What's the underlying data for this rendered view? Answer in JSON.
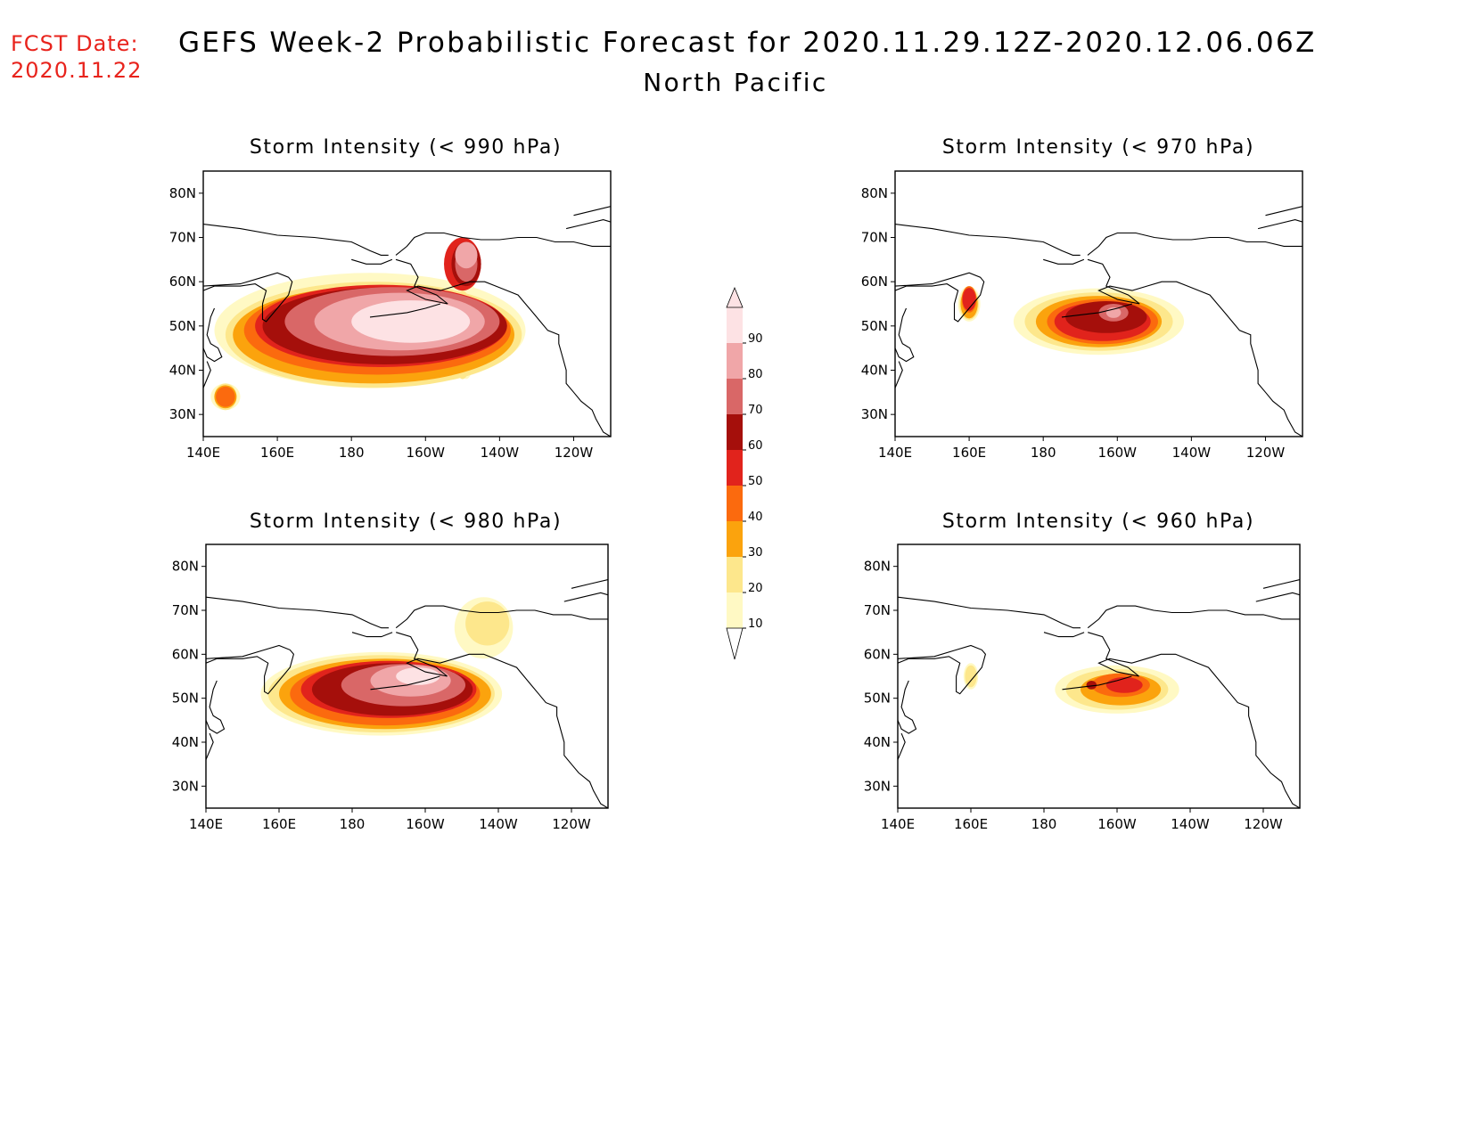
{
  "header": {
    "fcst_label": "FCST Date:",
    "fcst_date": "2020.11.22",
    "title": "GEFS Week-2 Probabilistic Forecast for 2020.11.29.12Z-2020.12.06.06Z",
    "subtitle": "North Pacific"
  },
  "colorbar": {
    "levels": [
      10,
      20,
      30,
      40,
      50,
      60,
      70,
      80,
      90
    ],
    "colors": [
      "#fff9c4",
      "#fde78c",
      "#fba30d",
      "#fb6a0e",
      "#e1231c",
      "#a50f0b",
      "#d96767",
      "#f0a6a8",
      "#fde2e4"
    ],
    "labels": [
      "10",
      "20",
      "30",
      "40",
      "50",
      "60",
      "70",
      "80",
      "90"
    ]
  },
  "axes": {
    "lon_ticks": [
      "140E",
      "160E",
      "180",
      "160W",
      "140W",
      "120W"
    ],
    "lat_ticks": [
      "80N",
      "70N",
      "60N",
      "50N",
      "40N",
      "30N"
    ]
  },
  "map_panels": [
    {
      "id": "p990",
      "title": "Storm Intensity (< 990 hPa)",
      "shading": [
        {
          "level": 10,
          "blobs": [
            [
              185,
              49,
              42,
              13
            ],
            [
              211,
              50,
              3,
              12
            ],
            [
              146,
              34,
              4,
              3
            ]
          ]
        },
        {
          "level": 20,
          "blobs": [
            [
              186,
              48,
              40,
              12
            ],
            [
              210,
              48,
              3,
              10
            ],
            [
              146,
              34,
              3,
              3
            ]
          ]
        },
        {
          "level": 30,
          "blobs": [
            [
              186,
              48,
              38,
              11
            ],
            [
              146,
              34,
              3,
              2.6
            ]
          ]
        },
        {
          "level": 40,
          "blobs": [
            [
              187,
              49,
              36,
              10
            ],
            [
              146,
              34,
              2.6,
              2.3
            ]
          ]
        },
        {
          "level": 50,
          "blobs": [
            [
              188,
              50,
              34,
              9.3
            ],
            [
              210,
              64,
              5,
              6
            ]
          ]
        },
        {
          "level": 60,
          "blobs": [
            [
              189,
              50,
              33,
              8.7
            ],
            [
              211,
              64,
              4,
              5
            ]
          ]
        },
        {
          "level": 70,
          "blobs": [
            [
              191,
              51,
              29,
              7.8
            ],
            [
              211,
              64,
              3,
              4
            ]
          ]
        },
        {
          "level": 80,
          "blobs": [
            [
              193,
              51,
              23,
              6.5
            ],
            [
              211,
              66,
              3,
              3
            ]
          ]
        },
        {
          "level": 90,
          "blobs": [
            [
              196,
              51,
              16,
              4.8
            ]
          ]
        }
      ]
    },
    {
      "id": "p970",
      "title": "Storm Intensity (< 970 hPa)",
      "shading": [
        {
          "level": 10,
          "blobs": [
            [
              195,
              51,
              23,
              7.5
            ],
            [
              160,
              55,
              3,
              4
            ]
          ]
        },
        {
          "level": 20,
          "blobs": [
            [
              195,
              51,
              20,
              6.6
            ],
            [
              160,
              55,
              2.6,
              3.6
            ]
          ]
        },
        {
          "level": 30,
          "blobs": [
            [
              195,
              51,
              17,
              5.8
            ],
            [
              160,
              55,
              2.3,
              3.3
            ]
          ]
        },
        {
          "level": 40,
          "blobs": [
            [
              196,
              51,
              15,
              5.1
            ],
            [
              160,
              56,
              2,
              3
            ]
          ]
        },
        {
          "level": 50,
          "blobs": [
            [
              196,
              51,
              13,
              4.4
            ],
            [
              160,
              56,
              1.8,
              2.6
            ]
          ]
        },
        {
          "level": 60,
          "blobs": [
            [
              197,
              52,
              11,
              3.6
            ]
          ]
        },
        {
          "level": 70,
          "blobs": [
            [
              199,
              53,
              4,
              2
            ]
          ]
        },
        {
          "level": 80,
          "blobs": [
            [
              199,
              53,
              2,
              1.2
            ]
          ]
        }
      ]
    },
    {
      "id": "p980",
      "title": "Storm Intensity (< 980 hPa)",
      "shading": [
        {
          "level": 10,
          "blobs": [
            [
              188,
              51,
              33,
              9.5
            ],
            [
              216,
              66,
              8,
              7
            ]
          ]
        },
        {
          "level": 20,
          "blobs": [
            [
              188,
              51,
              31,
              8.8
            ],
            [
              217,
              67,
              6,
              5
            ]
          ]
        },
        {
          "level": 30,
          "blobs": [
            [
              189,
              51,
              29,
              8
            ]
          ]
        },
        {
          "level": 40,
          "blobs": [
            [
              189,
              51,
              26,
              7.2
            ]
          ]
        },
        {
          "level": 50,
          "blobs": [
            [
              190,
              52,
              24,
              6.5
            ]
          ]
        },
        {
          "level": 60,
          "blobs": [
            [
              191,
              52,
              22,
              6
            ]
          ]
        },
        {
          "level": 70,
          "blobs": [
            [
              194,
              53,
              17,
              4.8
            ]
          ]
        },
        {
          "level": 80,
          "blobs": [
            [
              196,
              54,
              11,
              3.6
            ]
          ]
        },
        {
          "level": 90,
          "blobs": [
            [
              198,
              55,
              6,
              2
            ]
          ]
        }
      ]
    },
    {
      "id": "p960",
      "title": "Storm Intensity (< 960 hPa)",
      "shading": [
        {
          "level": 10,
          "blobs": [
            [
              200,
              52,
              17,
              5.5
            ],
            [
              160,
              55,
              2,
              3
            ]
          ]
        },
        {
          "level": 20,
          "blobs": [
            [
              200,
              52,
              14,
              4.6
            ],
            [
              160,
              55,
              1.6,
              2.5
            ]
          ]
        },
        {
          "level": 30,
          "blobs": [
            [
              201,
              52,
              11,
              3.6
            ]
          ]
        },
        {
          "level": 40,
          "blobs": [
            [
              201,
              53,
              8,
              2.7
            ]
          ]
        },
        {
          "level": 50,
          "blobs": [
            [
              202,
              53,
              5,
              1.8
            ]
          ]
        },
        {
          "level": 60,
          "blobs": [
            [
              193,
              53,
              1.4,
              1
            ]
          ]
        }
      ]
    }
  ],
  "chart_data": {
    "type": "heatmap",
    "title": "GEFS Week-2 Probabilistic Forecast for 2020.11.29.12Z-2020.12.06.06Z",
    "subtitle": "North Pacific",
    "colorbar_levels": [
      10,
      20,
      30,
      40,
      50,
      60,
      70,
      80,
      90
    ],
    "x_range_deg_east": [
      140,
      250
    ],
    "y_range_deg_north": [
      25,
      85
    ],
    "panels": [
      "Storm Intensity (< 990 hPa)",
      "Storm Intensity (< 970 hPa)",
      "Storm Intensity (< 980 hPa)",
      "Storm Intensity (< 960 hPa)"
    ]
  }
}
